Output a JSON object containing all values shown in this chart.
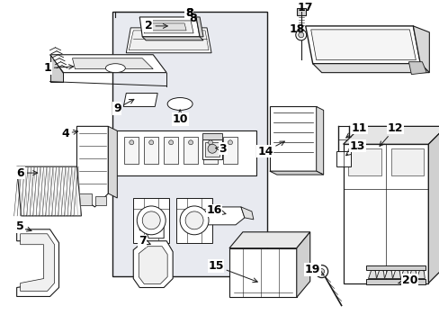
{
  "bg_color": "#ffffff",
  "line_color": "#1a1a1a",
  "gray_fill": "#e8e8e8",
  "light_gray": "#d0d0d0",
  "fig_width": 4.89,
  "fig_height": 3.6,
  "dpi": 100,
  "font_size": 7.5,
  "label_font_size": 9.0
}
